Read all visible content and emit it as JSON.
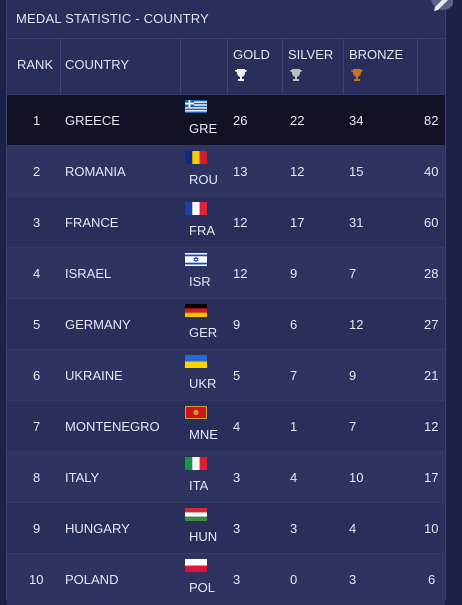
{
  "title": "MEDAL STATISTIC - COUNTRY",
  "columns": {
    "rank": "RANK",
    "country": "COUNTRY",
    "gold": "GOLD",
    "silver": "SILVER",
    "bronze": "BRONZE"
  },
  "colors": {
    "gold_trophy": "#f1f1f1",
    "silver_trophy": "#bfbfbf",
    "bronze_trophy": "#c9702c",
    "selected_row": "#121226"
  },
  "rows": [
    {
      "rank": "1",
      "country": "GREECE",
      "code": "GRE",
      "gold": "26",
      "silver": "22",
      "bronze": "34",
      "total": "82",
      "flag": "flag-greece"
    },
    {
      "rank": "2",
      "country": "ROMANIA",
      "code": "ROU",
      "gold": "13",
      "silver": "12",
      "bronze": "15",
      "total": "40",
      "flag": "flag-romania"
    },
    {
      "rank": "3",
      "country": "FRANCE",
      "code": "FRA",
      "gold": "12",
      "silver": "17",
      "bronze": "31",
      "total": "60",
      "flag": "flag-france"
    },
    {
      "rank": "4",
      "country": "ISRAEL",
      "code": "ISR",
      "gold": "12",
      "silver": "9",
      "bronze": "7",
      "total": "28",
      "flag": "flag-israel"
    },
    {
      "rank": "5",
      "country": "GERMANY",
      "code": "GER",
      "gold": "9",
      "silver": "6",
      "bronze": "12",
      "total": "27",
      "flag": "flag-germany"
    },
    {
      "rank": "6",
      "country": "UKRAINE",
      "code": "UKR",
      "gold": "5",
      "silver": "7",
      "bronze": "9",
      "total": "21",
      "flag": "flag-ukraine"
    },
    {
      "rank": "7",
      "country": "MONTENEGRO",
      "code": "MNE",
      "gold": "4",
      "silver": "1",
      "bronze": "7",
      "total": "12",
      "flag": "flag-montenegro"
    },
    {
      "rank": "8",
      "country": "ITALY",
      "code": "ITA",
      "gold": "3",
      "silver": "4",
      "bronze": "10",
      "total": "17",
      "flag": "flag-italy"
    },
    {
      "rank": "9",
      "country": "HUNGARY",
      "code": "HUN",
      "gold": "3",
      "silver": "3",
      "bronze": "4",
      "total": "10",
      "flag": "flag-hungary"
    },
    {
      "rank": "10",
      "country": "POLAND",
      "code": "POL",
      "gold": "3",
      "silver": "0",
      "bronze": "3",
      "total": "6",
      "flag": "flag-poland"
    }
  ]
}
